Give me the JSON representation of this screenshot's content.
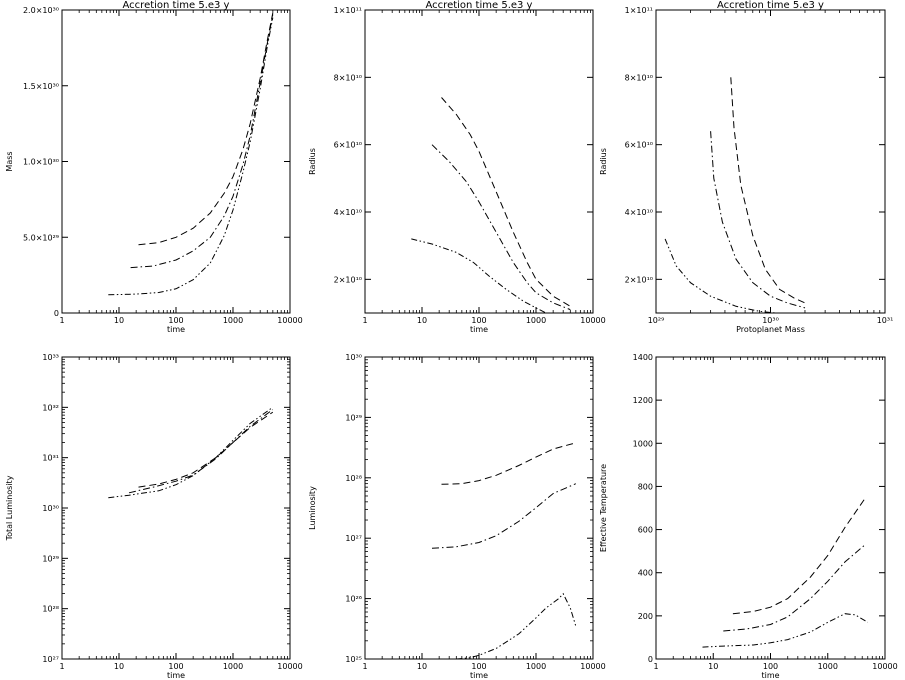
{
  "chart_data": [
    {
      "type": "line",
      "title": "Accretion time 5.e3 y",
      "xlabel": "time",
      "ylabel": "Mass",
      "xscale": "log",
      "yscale": "linear",
      "xlim": [
        1,
        10000
      ],
      "ylim": [
        0,
        2e+30
      ],
      "xticks": [
        {
          "v": 1,
          "label": "1"
        },
        {
          "v": 10,
          "label": "10"
        },
        {
          "v": 100,
          "label": "100"
        },
        {
          "v": 1000,
          "label": "1000"
        },
        {
          "v": 10000,
          "label": "10000"
        }
      ],
      "yticks": [
        {
          "v": 0,
          "label": "0"
        },
        {
          "v": 5e+29,
          "label": "5.0×10²⁹"
        },
        {
          "v": 1e+30,
          "label": "1.0×10³⁰"
        },
        {
          "v": 1.5e+30,
          "label": "1.5×10³⁰"
        },
        {
          "v": 2e+30,
          "label": "2.0×10³⁰"
        }
      ],
      "series": [
        {
          "dash": "dashed",
          "x": [
            22,
            50,
            100,
            200,
            400,
            700,
            1000,
            1500,
            2000,
            3000,
            4000,
            5000
          ],
          "y": [
            4.5e+29,
            4.65e+29,
            5e+29,
            5.6e+29,
            6.6e+29,
            7.9e+29,
            9e+29,
            1.08e+30,
            1.25e+30,
            1.55e+30,
            1.8e+30,
            1.98e+30
          ]
        },
        {
          "dash": "dashdot",
          "x": [
            16,
            40,
            100,
            200,
            400,
            700,
            1000,
            1500,
            2000,
            3000,
            4000,
            5000
          ],
          "y": [
            3e+29,
            3.1e+29,
            3.5e+29,
            4.1e+29,
            5e+29,
            6.4e+29,
            7.7e+29,
            9.8e+29,
            1.17e+30,
            1.52e+30,
            1.78e+30,
            1.97e+30
          ]
        },
        {
          "dash": "dashdotdot",
          "x": [
            6.5,
            20,
            50,
            100,
            200,
            400,
            700,
            1000,
            1500,
            2000,
            3000,
            4000,
            5000
          ],
          "y": [
            1.2e+29,
            1.25e+29,
            1.35e+29,
            1.6e+29,
            2.2e+29,
            3.3e+29,
            5.1e+29,
            6.8e+29,
            9.3e+29,
            1.13e+30,
            1.48e+30,
            1.76e+30,
            1.95e+30
          ]
        }
      ]
    },
    {
      "type": "line",
      "title": "Accretion time 5.e3 y",
      "xlabel": "time",
      "ylabel": "Radius",
      "xscale": "log",
      "yscale": "linear",
      "xlim": [
        1,
        10000
      ],
      "ylim": [
        10000000000.0,
        100000000000.0
      ],
      "xticks": [
        {
          "v": 1,
          "label": "1"
        },
        {
          "v": 10,
          "label": "10"
        },
        {
          "v": 100,
          "label": "100"
        },
        {
          "v": 1000,
          "label": "1000"
        },
        {
          "v": 10000,
          "label": "10000"
        }
      ],
      "yticks": [
        {
          "v": 20000000000.0,
          "label": "2×10¹⁰"
        },
        {
          "v": 40000000000.0,
          "label": "4×10¹⁰"
        },
        {
          "v": 60000000000.0,
          "label": "6×10¹⁰"
        },
        {
          "v": 80000000000.0,
          "label": "8×10¹⁰"
        },
        {
          "v": 100000000000.0,
          "label": "1×10¹¹"
        }
      ],
      "series": [
        {
          "dash": "dashed",
          "x": [
            22,
            40,
            70,
            100,
            200,
            400,
            700,
            1000,
            2000,
            4000
          ],
          "y": [
            74000000000.0,
            69000000000.0,
            63000000000.0,
            58000000000.0,
            46000000000.0,
            34000000000.0,
            25000000000.0,
            20000000000.0,
            15000000000.0,
            12000000000.0
          ]
        },
        {
          "dash": "dashdot",
          "x": [
            15,
            30,
            60,
            100,
            200,
            400,
            700,
            1000,
            2000,
            4000
          ],
          "y": [
            60000000000.0,
            55000000000.0,
            49000000000.0,
            43000000000.0,
            34000000000.0,
            25000000000.0,
            19000000000.0,
            16000000000.0,
            13000000000.0,
            11000000000.0
          ]
        },
        {
          "dash": "dashdotdot",
          "x": [
            6.5,
            15,
            40,
            80,
            150,
            300,
            600,
            1000,
            1500
          ],
          "y": [
            32000000000.0,
            30500000000.0,
            28000000000.0,
            25000000000.0,
            21000000000.0,
            17000000000.0,
            13500000000.0,
            11500000000.0,
            10000000000.0
          ]
        }
      ]
    },
    {
      "type": "line",
      "title": "Accretion time 5.e3 y",
      "xlabel": "Protoplanet Mass",
      "ylabel": "Radius",
      "xscale": "log",
      "yscale": "linear",
      "xlim": [
        1e+29,
        1e+31
      ],
      "ylim": [
        10000000000.0,
        100000000000.0
      ],
      "xticks": [
        {
          "v": 1e+29,
          "label": "10²⁹"
        },
        {
          "v": 1e+30,
          "label": "10³⁰"
        },
        {
          "v": 1e+31,
          "label": "10³¹"
        }
      ],
      "yticks": [
        {
          "v": 20000000000.0,
          "label": "2×10¹⁰"
        },
        {
          "v": 40000000000.0,
          "label": "4×10¹⁰"
        },
        {
          "v": 60000000000.0,
          "label": "6×10¹⁰"
        },
        {
          "v": 80000000000.0,
          "label": "8×10¹⁰"
        },
        {
          "v": 100000000000.0,
          "label": "1×10¹¹"
        }
      ],
      "series": [
        {
          "dash": "dashed",
          "x": [
            4.5e+29,
            4.8e+29,
            5.5e+29,
            7e+29,
            9e+29,
            1.2e+30,
            1.6e+30,
            2e+30
          ],
          "y": [
            80000000000.0,
            65000000000.0,
            48000000000.0,
            33000000000.0,
            23000000000.0,
            17000000000.0,
            14500000000.0,
            13000000000.0
          ]
        },
        {
          "dash": "dashdot",
          "x": [
            3e+29,
            3.2e+29,
            3.8e+29,
            5e+29,
            7e+29,
            1e+30,
            1.4e+30,
            2e+30
          ],
          "y": [
            64000000000.0,
            50000000000.0,
            37000000000.0,
            26000000000.0,
            19000000000.0,
            15000000000.0,
            13000000000.0,
            11500000000.0
          ]
        },
        {
          "dash": "dashdotdot",
          "x": [
            1.2e+29,
            1.5e+29,
            2e+29,
            3e+29,
            5e+29,
            8e+29,
            1.1e+30
          ],
          "y": [
            32000000000.0,
            24000000000.0,
            19000000000.0,
            15000000000.0,
            12000000000.0,
            10500000000.0,
            10000000000.0
          ]
        }
      ]
    },
    {
      "type": "line",
      "xlabel": "time",
      "ylabel": "Total Luminosity",
      "xscale": "log",
      "yscale": "log",
      "xlim": [
        1,
        10000
      ],
      "ylim": [
        1e+27,
        1e+33
      ],
      "xticks": [
        {
          "v": 1,
          "label": "1"
        },
        {
          "v": 10,
          "label": "10"
        },
        {
          "v": 100,
          "label": "100"
        },
        {
          "v": 1000,
          "label": "1000"
        },
        {
          "v": 10000,
          "label": "10000"
        }
      ],
      "yticks": [
        {
          "v": 1e+27,
          "label": "10²⁷"
        },
        {
          "v": 1e+28,
          "label": "10²⁸"
        },
        {
          "v": 1e+29,
          "label": "10²⁹"
        },
        {
          "v": 1e+30,
          "label": "10³⁰"
        },
        {
          "v": 1e+31,
          "label": "10³¹"
        },
        {
          "v": 1e+32,
          "label": "10³²"
        },
        {
          "v": 1e+33,
          "label": "10³³"
        }
      ],
      "series": [
        {
          "dash": "dashed",
          "x": [
            22,
            50,
            100,
            200,
            500,
            1000,
            2000,
            5000
          ],
          "y": [
            2.6e+30,
            3e+30,
            3.7e+30,
            5e+30,
            1e+31,
            2e+31,
            4e+31,
            8e+31
          ]
        },
        {
          "dash": "dashdot",
          "x": [
            15,
            40,
            100,
            200,
            500,
            1000,
            2000,
            5000
          ],
          "y": [
            2e+30,
            2.6e+30,
            3.4e+30,
            4.5e+30,
            9.5e+30,
            2e+31,
            4.2e+31,
            9e+31
          ]
        },
        {
          "dash": "dashdotdot",
          "x": [
            6.5,
            15,
            50,
            100,
            200,
            500,
            1000,
            2000,
            5000
          ],
          "y": [
            1.6e+30,
            1.8e+30,
            2.2e+30,
            2.9e+30,
            4.4e+30,
            1e+31,
            2.2e+31,
            4.8e+31,
            1e+32
          ]
        }
      ]
    },
    {
      "type": "line",
      "xlabel": "time",
      "ylabel": "Luminosity",
      "xscale": "log",
      "yscale": "log",
      "xlim": [
        1,
        10000
      ],
      "ylim": [
        1e+25,
        1e+30
      ],
      "xticks": [
        {
          "v": 1,
          "label": "1"
        },
        {
          "v": 10,
          "label": "10"
        },
        {
          "v": 100,
          "label": "100"
        },
        {
          "v": 1000,
          "label": "1000"
        },
        {
          "v": 10000,
          "label": "10000"
        }
      ],
      "yticks": [
        {
          "v": 1e+25,
          "label": "10²⁵"
        },
        {
          "v": 1e+26,
          "label": "10²⁶"
        },
        {
          "v": 1e+27,
          "label": "10²⁷"
        },
        {
          "v": 1e+28,
          "label": "10²⁸"
        },
        {
          "v": 1e+29,
          "label": "10²⁹"
        },
        {
          "v": 1e+30,
          "label": "10³⁰"
        }
      ],
      "series": [
        {
          "dash": "dashed",
          "x": [
            22,
            50,
            100,
            200,
            500,
            1000,
            2000,
            5000
          ],
          "y": [
            7.8e+27,
            8e+27,
            9e+27,
            1.1e+28,
            1.6e+28,
            2.2e+28,
            3e+28,
            3.8e+28
          ]
        },
        {
          "dash": "dashdot",
          "x": [
            15,
            40,
            100,
            200,
            500,
            1000,
            2000,
            5000
          ],
          "y": [
            6.8e+26,
            7.2e+26,
            8.5e+26,
            1.1e+27,
            1.9e+27,
            3.2e+27,
            5.5e+27,
            8e+27
          ]
        },
        {
          "dash": "dashdotdot",
          "x": [
            40,
            70,
            100,
            200,
            500,
            1000,
            1500,
            2500,
            3000,
            4000,
            5000
          ],
          "y": [
            1e+25,
            1.05e+25,
            1.15e+25,
            1.5e+25,
            2.6e+25,
            4.8e+25,
            7e+25,
            1e+26,
            1.2e+26,
            7e+25,
            3.5e+25
          ]
        }
      ]
    },
    {
      "type": "line",
      "xlabel": "time",
      "ylabel": "Effective Temperature",
      "xscale": "log",
      "yscale": "linear",
      "xlim": [
        1,
        10000
      ],
      "ylim": [
        0,
        1400
      ],
      "xticks": [
        {
          "v": 1,
          "label": "1"
        },
        {
          "v": 10,
          "label": "10"
        },
        {
          "v": 100,
          "label": "100"
        },
        {
          "v": 1000,
          "label": "1000"
        },
        {
          "v": 10000,
          "label": "10000"
        }
      ],
      "yticks": [
        {
          "v": 0,
          "label": "0"
        },
        {
          "v": 200,
          "label": "200"
        },
        {
          "v": 400,
          "label": "400"
        },
        {
          "v": 600,
          "label": "600"
        },
        {
          "v": 800,
          "label": "800"
        },
        {
          "v": 1000,
          "label": "1000"
        },
        {
          "v": 1200,
          "label": "1200"
        },
        {
          "v": 1400,
          "label": "1400"
        }
      ],
      "series": [
        {
          "dash": "dashed",
          "x": [
            22,
            50,
            100,
            200,
            500,
            1000,
            2000,
            4500
          ],
          "y": [
            210,
            220,
            240,
            280,
            380,
            480,
            610,
            745
          ]
        },
        {
          "dash": "dashdot",
          "x": [
            15,
            40,
            100,
            200,
            500,
            1000,
            2000,
            4500
          ],
          "y": [
            130,
            140,
            160,
            195,
            280,
            360,
            450,
            530
          ]
        },
        {
          "dash": "dashdotdot",
          "x": [
            6.5,
            15,
            50,
            100,
            200,
            500,
            1000,
            2000,
            3000,
            5000
          ],
          "y": [
            55,
            60,
            65,
            75,
            90,
            125,
            170,
            210,
            205,
            170
          ]
        }
      ]
    }
  ]
}
